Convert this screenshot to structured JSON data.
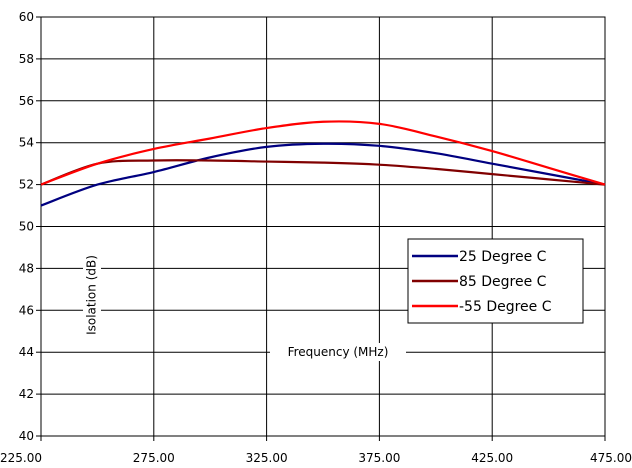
{
  "chart_data": {
    "type": "line",
    "xlabel": "Frequency (MHz)",
    "ylabel": "Isolation (dB)",
    "xlim": [
      225,
      475
    ],
    "ylim": [
      40,
      60
    ],
    "x_ticks": [
      "225.00",
      "275.00",
      "325.00",
      "375.00",
      "425.00",
      "475.00"
    ],
    "y_ticks": [
      "40",
      "42",
      "44",
      "46",
      "48",
      "50",
      "52",
      "54",
      "56",
      "58",
      "60"
    ],
    "grid": true,
    "legend_position": "center-right",
    "x": [
      225,
      250,
      275,
      300,
      325,
      350,
      375,
      400,
      425,
      450,
      475
    ],
    "series": [
      {
        "name": "25 Degree C",
        "color": "#000080",
        "values": [
          51.0,
          52.0,
          52.6,
          53.3,
          53.8,
          53.95,
          53.85,
          53.5,
          53.0,
          52.5,
          52.0
        ]
      },
      {
        "name": "85 Degree C",
        "color": "#800000",
        "values": [
          52.0,
          53.0,
          53.15,
          53.15,
          53.1,
          53.05,
          52.95,
          52.75,
          52.5,
          52.25,
          52.0
        ]
      },
      {
        "name": "-55 Degree C",
        "color": "#ff0000",
        "values": [
          52.0,
          53.0,
          53.7,
          54.2,
          54.7,
          55.0,
          54.9,
          54.3,
          53.6,
          52.8,
          52.0
        ]
      }
    ]
  }
}
